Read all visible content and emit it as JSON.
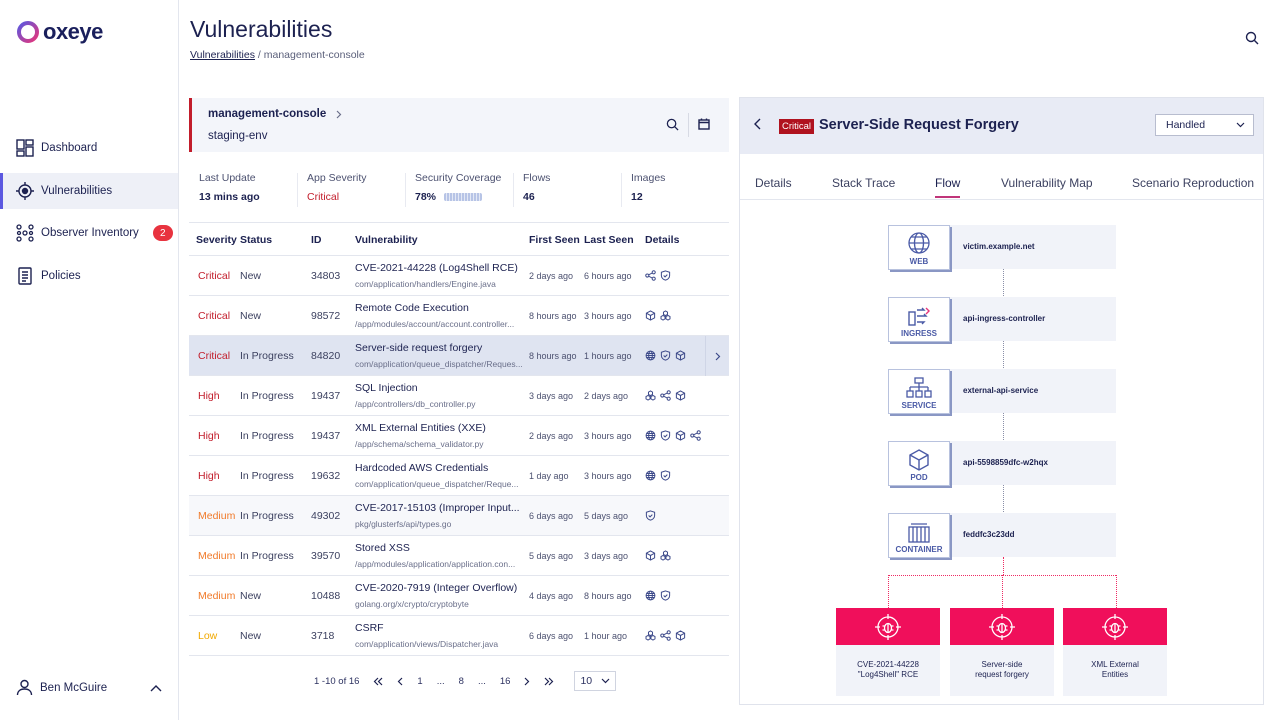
{
  "brand": {
    "name": "oxeye"
  },
  "sidebar": {
    "items": [
      {
        "label": "Dashboard"
      },
      {
        "label": "Vulnerabilities"
      },
      {
        "label": "Observer Inventory",
        "badge": "2"
      },
      {
        "label": "Policies"
      }
    ],
    "user": {
      "name": "Ben McGuire"
    }
  },
  "header": {
    "title": "Vulnerabilities",
    "breadcrumb": {
      "link": "Vulnerabilities",
      "separator": "/",
      "current": "management-console"
    }
  },
  "app": {
    "name": "management-console",
    "env": "staging-env"
  },
  "stats": [
    {
      "label": "Last Update",
      "value": "13 mins ago"
    },
    {
      "label": "App Severity",
      "value": "Critical"
    },
    {
      "label": "Security Coverage",
      "value": "78%",
      "progress": 0.78
    },
    {
      "label": "Flows",
      "value": "46"
    },
    {
      "label": "Images",
      "value": "12"
    }
  ],
  "table": {
    "headers": {
      "severity": "Severity",
      "status": "Status",
      "id": "ID",
      "vulnerability": "Vulnerability",
      "first_seen": "First Seen",
      "last_seen": "Last Seen",
      "details": "Details"
    },
    "rows": [
      {
        "severity": "Critical",
        "status": "New",
        "id": "34803",
        "name": "CVE-2021-44228 (Log4Shell RCE)",
        "path": "com/application/handlers/Engine.java",
        "first": "2 days ago",
        "last": "6 hours ago",
        "icons": [
          "share-icon",
          "shield-icon"
        ]
      },
      {
        "severity": "Critical",
        "status": "New",
        "id": "98572",
        "name": "Remote Code Execution",
        "path": "/app/modules/account/account.controller...",
        "first": "8 hours ago",
        "last": "3 hours ago",
        "icons": [
          "cube-icon",
          "cluster-icon"
        ]
      },
      {
        "severity": "Critical",
        "status": "In Progress",
        "id": "84820",
        "name": "Server-side request forgery",
        "path": "com/application/queue_dispatcher/Reques...",
        "first": "8 hours ago",
        "last": "1 hours ago",
        "icons": [
          "globe-icon",
          "shield-icon",
          "cube-icon"
        ]
      },
      {
        "severity": "High",
        "status": "In Progress",
        "id": "19437",
        "name": "SQL Injection",
        "path": "/app/controllers/db_controller.py",
        "first": "3 days ago",
        "last": "2 days ago",
        "icons": [
          "cluster-icon",
          "share-icon",
          "cube-icon"
        ]
      },
      {
        "severity": "High",
        "status": "In Progress",
        "id": "19437",
        "name": "XML External Entities (XXE)",
        "path": "/app/schema/schema_validator.py",
        "first": "2 days ago",
        "last": "3 hours ago",
        "icons": [
          "globe-icon",
          "shield-icon",
          "cube-icon",
          "share-icon"
        ]
      },
      {
        "severity": "High",
        "status": "In Progress",
        "id": "19632",
        "name": "Hardcoded AWS Credentials",
        "path": "com/application/queue_dispatcher/Reque...",
        "first": "1 day ago",
        "last": "3 hours ago",
        "icons": [
          "globe-icon",
          "shield-icon"
        ]
      },
      {
        "severity": "Medium",
        "status": "In Progress",
        "id": "49302",
        "name": "CVE-2017-15103 (Improper Input...",
        "path": "pkg/glusterfs/api/types.go",
        "first": "6 days ago",
        "last": "5 days ago",
        "icons": [
          "shield-icon"
        ]
      },
      {
        "severity": "Medium",
        "status": "In Progress",
        "id": "39570",
        "name": "Stored XSS",
        "path": "/app/modules/application/application.con...",
        "first": "5 days ago",
        "last": "3 days ago",
        "icons": [
          "cube-icon",
          "cluster-icon"
        ]
      },
      {
        "severity": "Medium",
        "status": "New",
        "id": "10488",
        "name": "CVE-2020-7919 (Integer Overflow)",
        "path": "golang.org/x/crypto/cryptobyte",
        "first": "4 days ago",
        "last": "8 hours ago",
        "icons": [
          "globe-icon",
          "shield-icon"
        ]
      },
      {
        "severity": "Low",
        "status": "New",
        "id": "3718",
        "name": "CSRF",
        "path": "com/application/views/Dispatcher.java",
        "first": "6 days ago",
        "last": "1 hour ago",
        "icons": [
          "cluster-icon",
          "share-icon",
          "cube-icon"
        ]
      }
    ]
  },
  "pagination": {
    "range": "1 -10 of 16",
    "pages": [
      "1",
      "...",
      "8",
      "...",
      "16"
    ],
    "per_page": "10"
  },
  "detail": {
    "badge": "Critical",
    "title": "Server-Side Request Forgery",
    "status": "Handled",
    "tabs": [
      "Details",
      "Stack Trace",
      "Flow",
      "Vulnerability Map",
      "Scenario Reproduction"
    ],
    "active_tab": "Flow",
    "flow": [
      {
        "type": "WEB",
        "text": "victim.example.net"
      },
      {
        "type": "INGRESS",
        "text": "api-ingress-controller"
      },
      {
        "type": "SERVICE",
        "text": "external-api-service"
      },
      {
        "type": "POD",
        "text": "api-5598859dfc-w2hqx"
      },
      {
        "type": "CONTAINER",
        "text": "feddfc3c23dd"
      }
    ],
    "findings": [
      {
        "line1": "CVE-2021-44228",
        "line2": "\"Log4Shell\" RCE"
      },
      {
        "line1": "Server-side",
        "line2": "request forgery"
      },
      {
        "line1": "XML External",
        "line2": "Entities"
      }
    ]
  },
  "colors": {
    "accent": "#5b58e0",
    "critical": "#c21d2b",
    "medium": "#f07a2a",
    "low": "#f2a900",
    "finding": "#f00f5b"
  }
}
